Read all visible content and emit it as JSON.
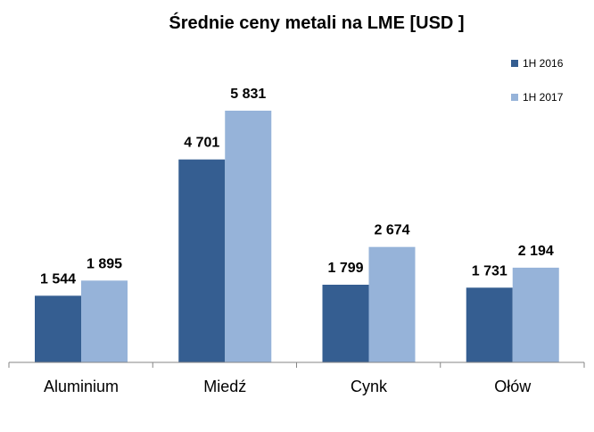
{
  "chart_data": {
    "type": "bar",
    "title": "Średnie ceny metali na LME [USD ]",
    "categories": [
      "Aluminium",
      "Miedź",
      "Cynk",
      "Ołów"
    ],
    "series": [
      {
        "name": "1H 2016",
        "values": [
          1544,
          4701,
          1799,
          1731
        ],
        "labels": [
          "1 544",
          "4 701",
          "1 799",
          "1 731"
        ],
        "color": "#355E91"
      },
      {
        "name": "1H 2017",
        "values": [
          1895,
          5831,
          2674,
          2194
        ],
        "labels": [
          "1 895",
          "5 831",
          "2 674",
          "2 194"
        ],
        "color": "#96B3D9"
      }
    ],
    "ylim": [
      0,
      5831
    ],
    "grid": false,
    "legend": "top-right"
  }
}
